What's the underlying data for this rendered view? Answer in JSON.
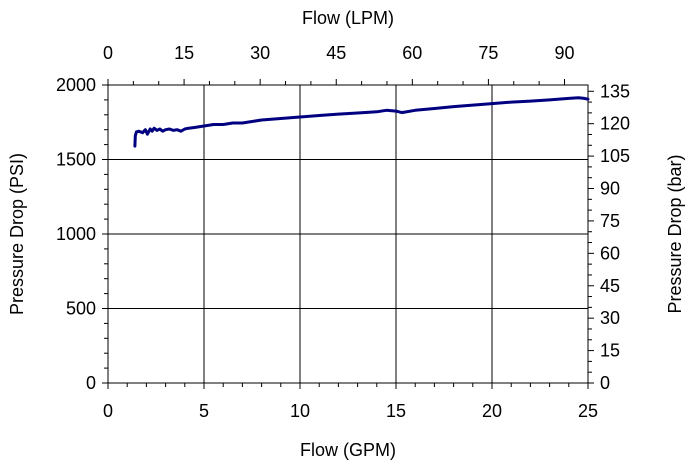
{
  "chart_data": {
    "type": "line",
    "xlabel": "Flow (GPM)",
    "ylabel": "Pressure Drop (PSI)",
    "x2label": "Flow (LPM)",
    "y2label": "Pressure Drop (bar)",
    "xlim": [
      0,
      25
    ],
    "ylim": [
      0,
      2000
    ],
    "x2lim": [
      0,
      94.6353
    ],
    "y2lim": [
      0,
      137.9
    ],
    "x_ticks": [
      "0",
      "5",
      "10",
      "15",
      "20",
      "25"
    ],
    "y_ticks": [
      "0",
      "500",
      "1000",
      "1500",
      "2000"
    ],
    "x2_ticks": [
      "0",
      "15",
      "30",
      "45",
      "60",
      "75",
      "90"
    ],
    "y2_ticks": [
      "0",
      "15",
      "30",
      "45",
      "60",
      "75",
      "90",
      "105",
      "120",
      "135"
    ],
    "grid": true,
    "series_color": "#000080",
    "series": [
      {
        "x": [
          1.4,
          1.42,
          1.48,
          1.6,
          1.8,
          1.95,
          2.05,
          2.2,
          2.3,
          2.4,
          2.55,
          2.7,
          2.85,
          3.0,
          3.2,
          3.4,
          3.6,
          3.8,
          4.0,
          4.2,
          4.5,
          5.0,
          5.5,
          6.0,
          6.5,
          7.0,
          7.5,
          8.0,
          9.0,
          10.0,
          11.0,
          12.0,
          13.0,
          14.0,
          14.5,
          15.0,
          15.3,
          16.0,
          17.0,
          18.0,
          19.0,
          20.0,
          21.0,
          22.0,
          23.0,
          24.0,
          24.5,
          24.8,
          25.0
        ],
        "y": [
          1590,
          1660,
          1685,
          1690,
          1680,
          1700,
          1670,
          1705,
          1690,
          1710,
          1695,
          1705,
          1690,
          1700,
          1705,
          1695,
          1700,
          1690,
          1705,
          1710,
          1715,
          1725,
          1735,
          1735,
          1745,
          1745,
          1755,
          1765,
          1775,
          1785,
          1795,
          1805,
          1812,
          1820,
          1830,
          1825,
          1815,
          1830,
          1842,
          1855,
          1865,
          1875,
          1885,
          1892,
          1900,
          1910,
          1915,
          1910,
          1905
        ]
      }
    ]
  }
}
